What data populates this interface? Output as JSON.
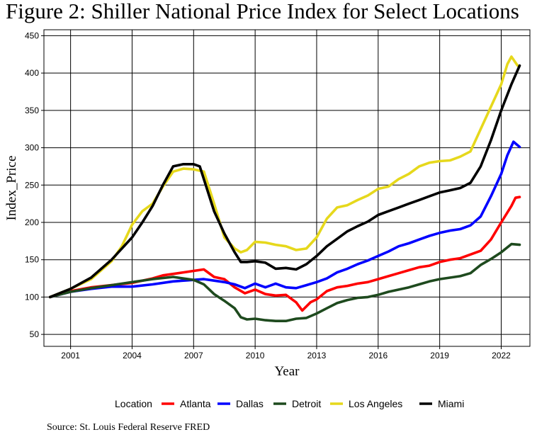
{
  "chart_data": {
    "type": "line",
    "title": "Figure 2: Shiller National Price Index for Select Locations",
    "xlabel": "Year",
    "ylabel": "Index_Price",
    "xlim": [
      1999.7,
      2023.4
    ],
    "ylim": [
      34,
      458
    ],
    "x_ticks": [
      2001,
      2004,
      2007,
      2010,
      2013,
      2016,
      2019,
      2022
    ],
    "y_ticks": [
      50,
      100,
      150,
      200,
      250,
      300,
      350,
      400,
      450
    ],
    "grid": true,
    "legend_title": "Location",
    "legend_position": "bottom",
    "caption": "Source: St. Louis Federal Reserve FRED",
    "series": [
      {
        "name": "Atlanta",
        "color": "#ff0000",
        "points": [
          [
            2000.0,
            100
          ],
          [
            2001.0,
            108
          ],
          [
            2002.0,
            113
          ],
          [
            2003.0,
            116
          ],
          [
            2004.0,
            119
          ],
          [
            2005.0,
            125
          ],
          [
            2005.5,
            129
          ],
          [
            2006.5,
            133
          ],
          [
            2007.5,
            137
          ],
          [
            2008.0,
            127
          ],
          [
            2008.5,
            124
          ],
          [
            2009.0,
            113
          ],
          [
            2009.5,
            105
          ],
          [
            2010.0,
            110
          ],
          [
            2010.5,
            104
          ],
          [
            2011.0,
            102
          ],
          [
            2011.5,
            103
          ],
          [
            2012.0,
            93
          ],
          [
            2012.3,
            82
          ],
          [
            2012.7,
            93
          ],
          [
            2013.0,
            97
          ],
          [
            2013.5,
            108
          ],
          [
            2014.0,
            113
          ],
          [
            2014.5,
            115
          ],
          [
            2015.0,
            118
          ],
          [
            2015.5,
            120
          ],
          [
            2016.0,
            124
          ],
          [
            2016.5,
            128
          ],
          [
            2017.0,
            132
          ],
          [
            2017.5,
            136
          ],
          [
            2018.0,
            140
          ],
          [
            2018.5,
            142
          ],
          [
            2019.0,
            147
          ],
          [
            2019.5,
            150
          ],
          [
            2020.0,
            152
          ],
          [
            2020.5,
            157
          ],
          [
            2021.0,
            162
          ],
          [
            2021.5,
            177
          ],
          [
            2022.0,
            200
          ],
          [
            2022.5,
            222
          ],
          [
            2022.7,
            233
          ],
          [
            2022.9,
            234
          ]
        ]
      },
      {
        "name": "Dallas",
        "color": "#0000ff",
        "points": [
          [
            2000.0,
            100
          ],
          [
            2001.0,
            107
          ],
          [
            2002.0,
            111
          ],
          [
            2003.0,
            114
          ],
          [
            2004.0,
            114
          ],
          [
            2005.0,
            117
          ],
          [
            2006.0,
            121
          ],
          [
            2007.0,
            123
          ],
          [
            2007.5,
            124
          ],
          [
            2008.0,
            122
          ],
          [
            2008.5,
            120
          ],
          [
            2009.0,
            117
          ],
          [
            2009.5,
            112
          ],
          [
            2010.0,
            118
          ],
          [
            2010.5,
            113
          ],
          [
            2011.0,
            118
          ],
          [
            2011.5,
            113
          ],
          [
            2012.0,
            112
          ],
          [
            2012.5,
            116
          ],
          [
            2013.0,
            120
          ],
          [
            2013.5,
            125
          ],
          [
            2014.0,
            133
          ],
          [
            2014.5,
            138
          ],
          [
            2015.0,
            144
          ],
          [
            2015.5,
            149
          ],
          [
            2016.0,
            155
          ],
          [
            2016.5,
            161
          ],
          [
            2017.0,
            168
          ],
          [
            2017.5,
            172
          ],
          [
            2018.0,
            177
          ],
          [
            2018.5,
            182
          ],
          [
            2019.0,
            186
          ],
          [
            2019.5,
            189
          ],
          [
            2020.0,
            191
          ],
          [
            2020.5,
            196
          ],
          [
            2021.0,
            208
          ],
          [
            2021.5,
            235
          ],
          [
            2022.0,
            265
          ],
          [
            2022.3,
            290
          ],
          [
            2022.6,
            308
          ],
          [
            2022.9,
            301
          ]
        ]
      },
      {
        "name": "Detroit",
        "color": "#1e4a1e",
        "points": [
          [
            2000.0,
            100
          ],
          [
            2001.0,
            107
          ],
          [
            2002.0,
            112
          ],
          [
            2003.0,
            116
          ],
          [
            2004.0,
            120
          ],
          [
            2005.0,
            124
          ],
          [
            2006.0,
            127
          ],
          [
            2007.0,
            123
          ],
          [
            2007.5,
            117
          ],
          [
            2008.0,
            104
          ],
          [
            2008.5,
            95
          ],
          [
            2009.0,
            85
          ],
          [
            2009.3,
            73
          ],
          [
            2009.6,
            70
          ],
          [
            2010.0,
            71
          ],
          [
            2010.5,
            69
          ],
          [
            2011.0,
            68
          ],
          [
            2011.5,
            68
          ],
          [
            2012.0,
            71
          ],
          [
            2012.5,
            72
          ],
          [
            2013.0,
            78
          ],
          [
            2013.5,
            85
          ],
          [
            2014.0,
            92
          ],
          [
            2014.5,
            96
          ],
          [
            2015.0,
            99
          ],
          [
            2015.5,
            100
          ],
          [
            2016.0,
            103
          ],
          [
            2016.5,
            107
          ],
          [
            2017.0,
            110
          ],
          [
            2017.5,
            113
          ],
          [
            2018.0,
            117
          ],
          [
            2018.5,
            121
          ],
          [
            2019.0,
            124
          ],
          [
            2019.5,
            126
          ],
          [
            2020.0,
            128
          ],
          [
            2020.5,
            132
          ],
          [
            2021.0,
            143
          ],
          [
            2021.5,
            151
          ],
          [
            2022.0,
            160
          ],
          [
            2022.5,
            171
          ],
          [
            2022.9,
            170
          ]
        ]
      },
      {
        "name": "Los Angeles",
        "color": "#e6d81c",
        "points": [
          [
            2000.0,
            100
          ],
          [
            2001.0,
            111
          ],
          [
            2002.0,
            124
          ],
          [
            2003.0,
            148
          ],
          [
            2003.5,
            168
          ],
          [
            2004.0,
            197
          ],
          [
            2004.5,
            215
          ],
          [
            2005.0,
            225
          ],
          [
            2005.5,
            248
          ],
          [
            2006.0,
            268
          ],
          [
            2006.5,
            272
          ],
          [
            2007.0,
            271
          ],
          [
            2007.5,
            268
          ],
          [
            2008.0,
            225
          ],
          [
            2008.5,
            180
          ],
          [
            2009.0,
            165
          ],
          [
            2009.3,
            160
          ],
          [
            2009.6,
            163
          ],
          [
            2010.0,
            174
          ],
          [
            2010.5,
            173
          ],
          [
            2011.0,
            170
          ],
          [
            2011.5,
            168
          ],
          [
            2012.0,
            163
          ],
          [
            2012.5,
            165
          ],
          [
            2013.0,
            180
          ],
          [
            2013.5,
            205
          ],
          [
            2014.0,
            220
          ],
          [
            2014.5,
            223
          ],
          [
            2015.0,
            230
          ],
          [
            2015.5,
            236
          ],
          [
            2016.0,
            245
          ],
          [
            2016.5,
            248
          ],
          [
            2017.0,
            258
          ],
          [
            2017.5,
            265
          ],
          [
            2018.0,
            275
          ],
          [
            2018.5,
            280
          ],
          [
            2019.0,
            282
          ],
          [
            2019.5,
            283
          ],
          [
            2020.0,
            288
          ],
          [
            2020.5,
            295
          ],
          [
            2021.0,
            325
          ],
          [
            2021.5,
            355
          ],
          [
            2022.0,
            385
          ],
          [
            2022.3,
            412
          ],
          [
            2022.5,
            422
          ],
          [
            2022.8,
            410
          ]
        ]
      },
      {
        "name": "Miami",
        "color": "#000000",
        "points": [
          [
            2000.0,
            100
          ],
          [
            2001.0,
            111
          ],
          [
            2002.0,
            126
          ],
          [
            2003.0,
            150
          ],
          [
            2004.0,
            180
          ],
          [
            2004.5,
            200
          ],
          [
            2005.0,
            222
          ],
          [
            2005.5,
            250
          ],
          [
            2006.0,
            275
          ],
          [
            2006.5,
            278
          ],
          [
            2007.0,
            278
          ],
          [
            2007.3,
            275
          ],
          [
            2008.0,
            215
          ],
          [
            2008.5,
            185
          ],
          [
            2009.0,
            160
          ],
          [
            2009.3,
            147
          ],
          [
            2009.6,
            147
          ],
          [
            2010.0,
            148
          ],
          [
            2010.5,
            146
          ],
          [
            2011.0,
            138
          ],
          [
            2011.5,
            139
          ],
          [
            2012.0,
            137
          ],
          [
            2012.5,
            144
          ],
          [
            2013.0,
            155
          ],
          [
            2013.5,
            168
          ],
          [
            2014.0,
            178
          ],
          [
            2014.5,
            188
          ],
          [
            2015.0,
            195
          ],
          [
            2015.5,
            201
          ],
          [
            2016.0,
            210
          ],
          [
            2016.5,
            215
          ],
          [
            2017.0,
            220
          ],
          [
            2017.5,
            225
          ],
          [
            2018.0,
            230
          ],
          [
            2018.5,
            235
          ],
          [
            2019.0,
            240
          ],
          [
            2019.5,
            243
          ],
          [
            2020.0,
            246
          ],
          [
            2020.5,
            253
          ],
          [
            2021.0,
            275
          ],
          [
            2021.5,
            310
          ],
          [
            2022.0,
            350
          ],
          [
            2022.5,
            385
          ],
          [
            2022.9,
            410
          ]
        ]
      }
    ]
  }
}
